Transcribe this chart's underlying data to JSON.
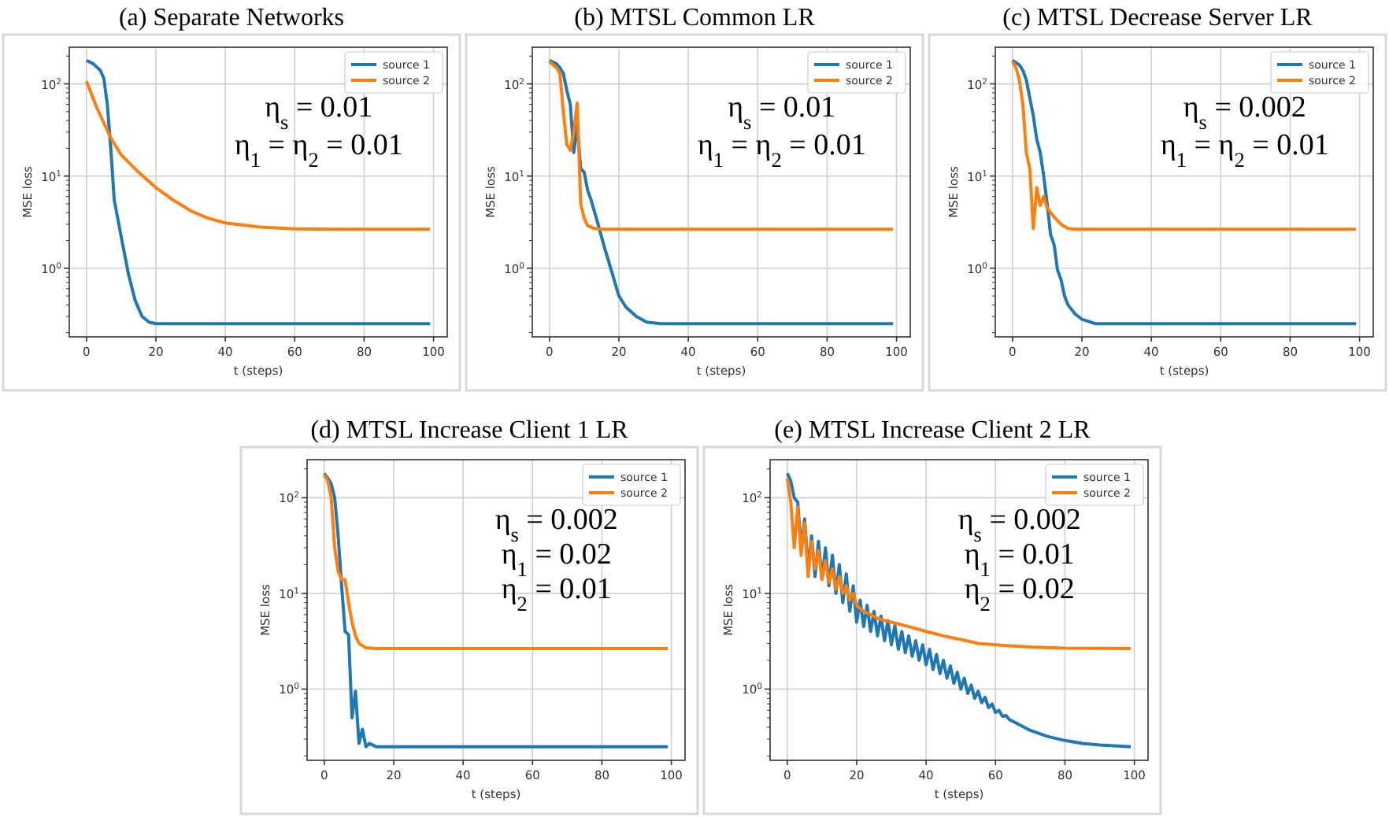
{
  "chart_data": [
    {
      "type": "line",
      "title": "(a) Separate Networks",
      "xlabel": "t (steps)",
      "ylabel": "MSE loss",
      "log": "y",
      "grid": true,
      "legend": "top right",
      "xlim": [
        -4.95,
        103.95
      ],
      "ylim": [
        0.18,
        250
      ],
      "xticks": [
        0,
        20,
        40,
        60,
        80,
        100
      ],
      "yticks": [
        {
          "value": 0.2,
          "label": null
        },
        {
          "value": 0.3,
          "label": null
        },
        {
          "value": 0.4,
          "label": null
        },
        {
          "value": 0.5,
          "label": null
        },
        {
          "value": 0.6,
          "label": null
        },
        {
          "value": 0.7,
          "label": null
        },
        {
          "value": 0.8,
          "label": null
        },
        {
          "value": 0.9,
          "label": null
        },
        {
          "value": 1,
          "label": "10$^{0}$"
        },
        {
          "value": 2,
          "label": null
        },
        {
          "value": 3,
          "label": null
        },
        {
          "value": 4,
          "label": null
        },
        {
          "value": 5,
          "label": null
        },
        {
          "value": 6,
          "label": null
        },
        {
          "value": 7,
          "label": null
        },
        {
          "value": 8,
          "label": null
        },
        {
          "value": 9,
          "label": null
        },
        {
          "value": 10,
          "label": "10$^{1}$"
        },
        {
          "value": 20,
          "label": null
        },
        {
          "value": 30,
          "label": null
        },
        {
          "value": 40,
          "label": null
        },
        {
          "value": 50,
          "label": null
        },
        {
          "value": 60,
          "label": null
        },
        {
          "value": 70,
          "label": null
        },
        {
          "value": 80,
          "label": null
        },
        {
          "value": 90,
          "label": null
        },
        {
          "value": 100,
          "label": "10$^{2}$"
        },
        {
          "value": 200,
          "label": null
        }
      ],
      "annotations": [
        "η$_{s}$ = 0.01",
        "η$_{1}$ = η$_{2}$ = 0.01"
      ],
      "series": [
        {
          "name": "source 1",
          "color": "#1f77b4",
          "x": [
            0,
            2,
            4,
            5,
            6,
            7,
            8,
            10,
            12,
            14,
            16,
            18,
            20,
            99
          ],
          "values": [
            180,
            165,
            140,
            115,
            60,
            20,
            5.5,
            2.2,
            0.9,
            0.45,
            0.3,
            0.26,
            0.25,
            0.25
          ]
        },
        {
          "name": "source 2",
          "color": "#ff7f0e",
          "x": [
            0,
            3,
            7,
            10,
            15,
            20,
            25,
            30,
            35,
            40,
            50,
            60,
            70,
            99
          ],
          "values": [
            107,
            55,
            26,
            17,
            11,
            7.5,
            5.5,
            4.2,
            3.5,
            3.1,
            2.8,
            2.67,
            2.65,
            2.65
          ]
        }
      ]
    },
    {
      "type": "line",
      "title": "(b) MTSL Common LR",
      "xlabel": "t (steps)",
      "ylabel": "MSE loss",
      "log": "y",
      "grid": true,
      "legend": "top right",
      "xlim": [
        -4.95,
        103.95
      ],
      "ylim": [
        0.18,
        250
      ],
      "xticks": [
        0,
        20,
        40,
        60,
        80,
        100
      ],
      "yticks": [
        {
          "value": 0.2,
          "label": null
        },
        {
          "value": 0.3,
          "label": null
        },
        {
          "value": 0.4,
          "label": null
        },
        {
          "value": 0.5,
          "label": null
        },
        {
          "value": 0.6,
          "label": null
        },
        {
          "value": 0.7,
          "label": null
        },
        {
          "value": 0.8,
          "label": null
        },
        {
          "value": 0.9,
          "label": null
        },
        {
          "value": 1,
          "label": "10$^{0}$"
        },
        {
          "value": 2,
          "label": null
        },
        {
          "value": 3,
          "label": null
        },
        {
          "value": 4,
          "label": null
        },
        {
          "value": 5,
          "label": null
        },
        {
          "value": 6,
          "label": null
        },
        {
          "value": 7,
          "label": null
        },
        {
          "value": 8,
          "label": null
        },
        {
          "value": 9,
          "label": null
        },
        {
          "value": 10,
          "label": "10$^{1}$"
        },
        {
          "value": 20,
          "label": null
        },
        {
          "value": 30,
          "label": null
        },
        {
          "value": 40,
          "label": null
        },
        {
          "value": 50,
          "label": null
        },
        {
          "value": 60,
          "label": null
        },
        {
          "value": 70,
          "label": null
        },
        {
          "value": 80,
          "label": null
        },
        {
          "value": 90,
          "label": null
        },
        {
          "value": 100,
          "label": "10$^{2}$"
        },
        {
          "value": 200,
          "label": null
        }
      ],
      "annotations": [
        "η$_{s}$ = 0.01",
        "η$_{1}$ = η$_{2}$ = 0.01"
      ],
      "series": [
        {
          "name": "source 1",
          "color": "#1f77b4",
          "x": [
            0,
            2,
            3,
            4,
            5,
            6,
            7,
            8,
            9,
            10,
            11,
            12,
            14,
            16,
            18,
            20,
            22,
            25,
            28,
            32,
            99
          ],
          "values": [
            180,
            165,
            150,
            130,
            85,
            60,
            18,
            35,
            12,
            11,
            7,
            5.5,
            3,
            1.6,
            0.9,
            0.5,
            0.38,
            0.3,
            0.26,
            0.25,
            0.25
          ]
        },
        {
          "name": "source 2",
          "color": "#ff7f0e",
          "x": [
            0,
            2,
            3,
            4,
            5,
            6,
            7,
            8,
            9,
            10,
            11,
            13,
            15,
            99
          ],
          "values": [
            175,
            150,
            130,
            50,
            22,
            19,
            30,
            62,
            5,
            3.5,
            2.9,
            2.7,
            2.65,
            2.65
          ]
        }
      ]
    },
    {
      "type": "line",
      "title": "(c) MTSL Decrease Server LR",
      "xlabel": "t (steps)",
      "ylabel": "MSE loss",
      "log": "y",
      "grid": true,
      "legend": "top right",
      "xlim": [
        -4.95,
        103.95
      ],
      "ylim": [
        0.18,
        250
      ],
      "xticks": [
        0,
        20,
        40,
        60,
        80,
        100
      ],
      "yticks": [
        {
          "value": 0.2,
          "label": null
        },
        {
          "value": 0.3,
          "label": null
        },
        {
          "value": 0.4,
          "label": null
        },
        {
          "value": 0.5,
          "label": null
        },
        {
          "value": 0.6,
          "label": null
        },
        {
          "value": 0.7,
          "label": null
        },
        {
          "value": 0.8,
          "label": null
        },
        {
          "value": 0.9,
          "label": null
        },
        {
          "value": 1,
          "label": "10$^{0}$"
        },
        {
          "value": 2,
          "label": null
        },
        {
          "value": 3,
          "label": null
        },
        {
          "value": 4,
          "label": null
        },
        {
          "value": 5,
          "label": null
        },
        {
          "value": 6,
          "label": null
        },
        {
          "value": 7,
          "label": null
        },
        {
          "value": 8,
          "label": null
        },
        {
          "value": 9,
          "label": null
        },
        {
          "value": 10,
          "label": "10$^{1}$"
        },
        {
          "value": 20,
          "label": null
        },
        {
          "value": 30,
          "label": null
        },
        {
          "value": 40,
          "label": null
        },
        {
          "value": 50,
          "label": null
        },
        {
          "value": 60,
          "label": null
        },
        {
          "value": 70,
          "label": null
        },
        {
          "value": 80,
          "label": null
        },
        {
          "value": 90,
          "label": null
        },
        {
          "value": 100,
          "label": "10$^{2}$"
        },
        {
          "value": 200,
          "label": null
        }
      ],
      "annotations": [
        "η$_{s}$ = 0.002",
        "η$_{1}$ = η$_{2}$ = 0.01"
      ],
      "series": [
        {
          "name": "source 1",
          "color": "#1f77b4",
          "x": [
            0,
            2,
            3,
            4,
            5,
            6,
            7,
            8,
            9,
            10,
            11,
            12,
            13,
            14,
            15,
            16,
            18,
            20,
            24,
            99
          ],
          "values": [
            180,
            160,
            140,
            110,
            70,
            45,
            25,
            18,
            10,
            5,
            2.3,
            1.8,
            0.95,
            0.75,
            0.5,
            0.4,
            0.32,
            0.28,
            0.25,
            0.25
          ]
        },
        {
          "name": "source 2",
          "color": "#ff7f0e",
          "x": [
            0,
            1,
            2,
            3,
            4,
            5,
            6,
            7,
            8,
            9,
            10,
            12,
            14,
            16,
            18,
            99
          ],
          "values": [
            175,
            150,
            110,
            60,
            18,
            12,
            2.7,
            7.5,
            4.8,
            6,
            4.5,
            3.6,
            3,
            2.7,
            2.65,
            2.65
          ]
        }
      ]
    },
    {
      "type": "line",
      "title": "(d) MTSL Increase Client 1 LR",
      "xlabel": "t (steps)",
      "ylabel": "MSE loss",
      "log": "y",
      "grid": true,
      "legend": "top right",
      "xlim": [
        -4.95,
        103.95
      ],
      "ylim": [
        0.18,
        250
      ],
      "xticks": [
        0,
        20,
        40,
        60,
        80,
        100
      ],
      "yticks": [
        {
          "value": 0.2,
          "label": null
        },
        {
          "value": 0.3,
          "label": null
        },
        {
          "value": 0.4,
          "label": null
        },
        {
          "value": 0.5,
          "label": null
        },
        {
          "value": 0.6,
          "label": null
        },
        {
          "value": 0.7,
          "label": null
        },
        {
          "value": 0.8,
          "label": null
        },
        {
          "value": 0.9,
          "label": null
        },
        {
          "value": 1,
          "label": "10$^{0}$"
        },
        {
          "value": 2,
          "label": null
        },
        {
          "value": 3,
          "label": null
        },
        {
          "value": 4,
          "label": null
        },
        {
          "value": 5,
          "label": null
        },
        {
          "value": 6,
          "label": null
        },
        {
          "value": 7,
          "label": null
        },
        {
          "value": 8,
          "label": null
        },
        {
          "value": 9,
          "label": null
        },
        {
          "value": 10,
          "label": "10$^{1}$"
        },
        {
          "value": 20,
          "label": null
        },
        {
          "value": 30,
          "label": null
        },
        {
          "value": 40,
          "label": null
        },
        {
          "value": 50,
          "label": null
        },
        {
          "value": 60,
          "label": null
        },
        {
          "value": 70,
          "label": null
        },
        {
          "value": 80,
          "label": null
        },
        {
          "value": 90,
          "label": null
        },
        {
          "value": 100,
          "label": "10$^{2}$"
        },
        {
          "value": 200,
          "label": null
        }
      ],
      "annotations": [
        "η$_{s}$ = 0.002",
        "η$_{1}$ = 0.02",
        "η$_{2}$ = 0.01"
      ],
      "series": [
        {
          "name": "source 1",
          "color": "#1f77b4",
          "x": [
            0,
            1,
            2,
            3,
            4,
            5,
            6,
            7,
            8,
            9,
            10,
            11,
            12,
            13,
            15,
            99
          ],
          "values": [
            180,
            160,
            140,
            100,
            40,
            12,
            4,
            3.7,
            0.5,
            0.95,
            0.27,
            0.38,
            0.25,
            0.27,
            0.25,
            0.25
          ]
        },
        {
          "name": "source 2",
          "color": "#ff7f0e",
          "x": [
            0,
            1,
            2,
            3,
            4,
            5,
            6,
            7,
            8,
            9,
            10,
            12,
            15,
            99
          ],
          "values": [
            175,
            150,
            100,
            30,
            17,
            14,
            14,
            8,
            5,
            3.6,
            3,
            2.7,
            2.65,
            2.65
          ]
        }
      ]
    },
    {
      "type": "line",
      "title": "(e) MTSL Increase Client 2 LR",
      "xlabel": "t (steps)",
      "ylabel": "MSE loss",
      "log": "y",
      "grid": true,
      "legend": "top right",
      "xlim": [
        -4.95,
        103.95
      ],
      "ylim": [
        0.18,
        250
      ],
      "xticks": [
        0,
        20,
        40,
        60,
        80,
        100
      ],
      "yticks": [
        {
          "value": 0.2,
          "label": null
        },
        {
          "value": 0.3,
          "label": null
        },
        {
          "value": 0.4,
          "label": null
        },
        {
          "value": 0.5,
          "label": null
        },
        {
          "value": 0.6,
          "label": null
        },
        {
          "value": 0.7,
          "label": null
        },
        {
          "value": 0.8,
          "label": null
        },
        {
          "value": 0.9,
          "label": null
        },
        {
          "value": 1,
          "label": "10$^{0}$"
        },
        {
          "value": 2,
          "label": null
        },
        {
          "value": 3,
          "label": null
        },
        {
          "value": 4,
          "label": null
        },
        {
          "value": 5,
          "label": null
        },
        {
          "value": 6,
          "label": null
        },
        {
          "value": 7,
          "label": null
        },
        {
          "value": 8,
          "label": null
        },
        {
          "value": 9,
          "label": null
        },
        {
          "value": 10,
          "label": "10$^{1}$"
        },
        {
          "value": 20,
          "label": null
        },
        {
          "value": 30,
          "label": null
        },
        {
          "value": 40,
          "label": null
        },
        {
          "value": 50,
          "label": null
        },
        {
          "value": 60,
          "label": null
        },
        {
          "value": 70,
          "label": null
        },
        {
          "value": 80,
          "label": null
        },
        {
          "value": 90,
          "label": null
        },
        {
          "value": 100,
          "label": "10$^{2}$"
        },
        {
          "value": 200,
          "label": null
        }
      ],
      "annotations": [
        "η$_{s}$ = 0.002",
        "η$_{1}$ = 0.01",
        "η$_{2}$ = 0.02"
      ],
      "series": [
        {
          "name": "source 1",
          "color": "#1f77b4",
          "x": [
            0,
            1,
            2,
            3,
            4,
            5,
            6,
            7,
            8,
            9,
            10,
            11,
            12,
            13,
            14,
            15,
            16,
            17,
            18,
            19,
            20,
            21,
            22,
            23,
            24,
            25,
            26,
            27,
            28,
            29,
            30,
            31,
            32,
            33,
            34,
            35,
            36,
            37,
            38,
            39,
            40,
            41,
            42,
            43,
            44,
            45,
            46,
            47,
            48,
            49,
            50,
            51,
            52,
            53,
            54,
            55,
            56,
            57,
            58,
            59,
            60,
            61,
            62,
            63,
            64,
            66,
            70,
            75,
            80,
            85,
            90,
            99
          ],
          "values": [
            180,
            150,
            100,
            90,
            30,
            60,
            18,
            40,
            15,
            35,
            14,
            30,
            12,
            25,
            10,
            20,
            8,
            16,
            6.5,
            12,
            5,
            8.5,
            4.5,
            7.5,
            4,
            6.5,
            3.6,
            5.8,
            3.2,
            5.2,
            2.9,
            4.6,
            2.6,
            4,
            2.4,
            3.6,
            2.2,
            3.2,
            2,
            2.9,
            1.8,
            2.6,
            1.6,
            2.3,
            1.45,
            2,
            1.3,
            1.75,
            1.15,
            1.5,
            1,
            1.3,
            0.9,
            1.1,
            0.8,
            0.95,
            0.72,
            0.82,
            0.64,
            0.7,
            0.57,
            0.6,
            0.52,
            0.53,
            0.48,
            0.44,
            0.37,
            0.32,
            0.29,
            0.27,
            0.26,
            0.25
          ]
        },
        {
          "name": "source 2",
          "color": "#ff7f0e",
          "x": [
            0,
            1,
            2,
            3,
            4,
            5,
            6,
            7,
            8,
            9,
            10,
            11,
            12,
            13,
            14,
            15,
            16,
            17,
            18,
            19,
            20,
            22,
            24,
            26,
            28,
            30,
            35,
            40,
            45,
            50,
            55,
            60,
            70,
            80,
            99
          ],
          "values": [
            160,
            90,
            30,
            80,
            25,
            55,
            15,
            35,
            18,
            28,
            14,
            22,
            13,
            18,
            11,
            15,
            10,
            12,
            8.5,
            10,
            7.5,
            6.5,
            6,
            5.5,
            5.2,
            5,
            4.5,
            4,
            3.6,
            3.3,
            3,
            2.9,
            2.75,
            2.68,
            2.65
          ]
        }
      ]
    }
  ]
}
